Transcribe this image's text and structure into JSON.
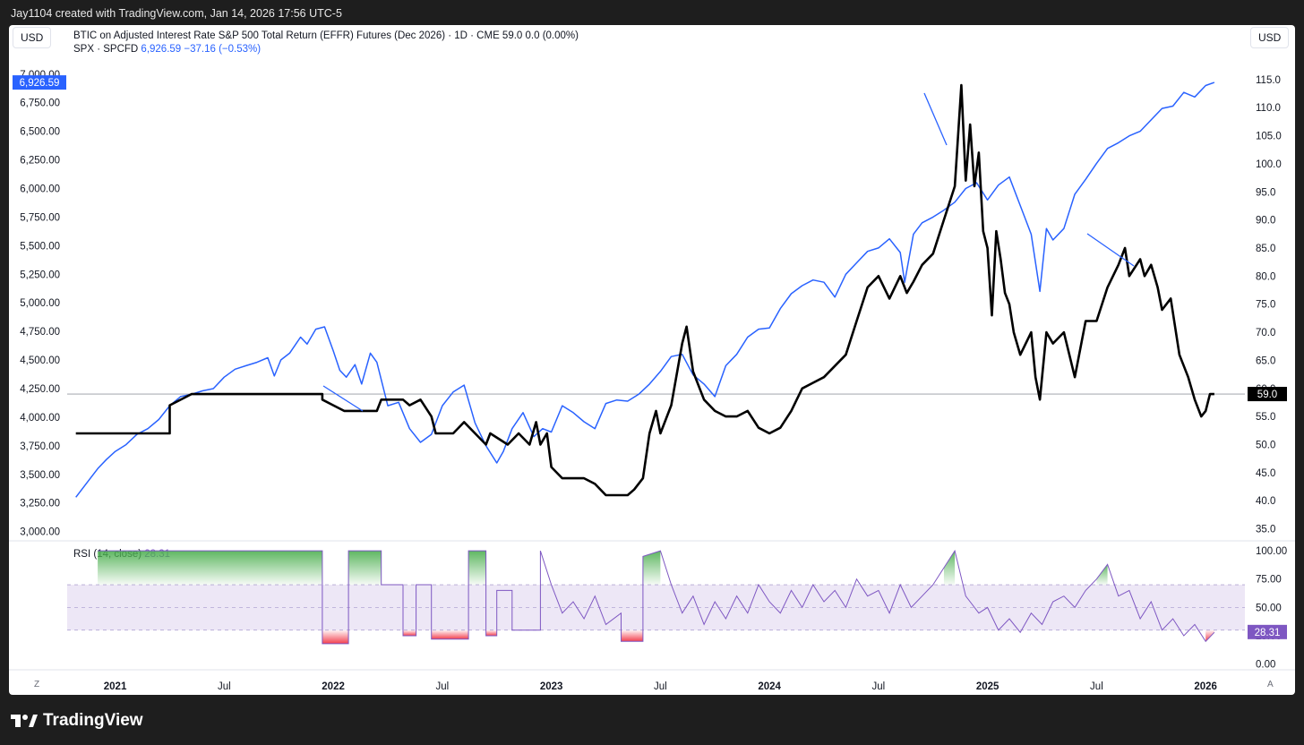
{
  "header": {
    "caption": "Jay1104 created with TradingView.com, Jan 14, 2026 17:56 UTC-5"
  },
  "toolbar": {
    "left_unit": "USD",
    "right_unit": "USD",
    "left_corner": "Z",
    "right_corner": "A"
  },
  "legend": {
    "main": "BTIC on Adjusted Interest Rate S&P 500 Total Return (EFFR) Futures (Dec 2026) · 1D · CME  59.0  0.0 (0.00%)",
    "spx_name": "SPX · SPCFD",
    "spx_value": "6,926.59",
    "spx_change": "−37.16 (−0.53%)",
    "rsi_name": "RSI (14, close)",
    "rsi_value": "28.31"
  },
  "brand": {
    "name": "TradingView"
  },
  "colors": {
    "spx": "#2962ff",
    "btic": "#000000",
    "rsi": "#7e57c2",
    "rsi_band": "#ede7f6",
    "overbought": "#4caf50",
    "oversold": "#f23645"
  },
  "chart_data": [
    {
      "type": "line",
      "x_labels": [
        "2021",
        "Jul",
        "2022",
        "Jul",
        "2023",
        "Jul",
        "2024",
        "Jul",
        "2025",
        "Jul",
        "2026"
      ],
      "left_axis": {
        "ticks": [
          "7,000.00",
          "6,750.00",
          "6,500.00",
          "6,250.00",
          "6,000.00",
          "5,750.00",
          "5,500.00",
          "5,250.00",
          "5,000.00",
          "4,750.00",
          "4,500.00",
          "4,250.00",
          "4,000.00",
          "3,750.00",
          "3,500.00",
          "3,250.00",
          "3,000.00"
        ],
        "ylim": [
          2950,
          7100
        ],
        "last_label": "6,926.59"
      },
      "right_axis": {
        "ticks": [
          "115.0",
          "110.0",
          "105.0",
          "100.0",
          "95.0",
          "90.0",
          "85.0",
          "80.0",
          "75.0",
          "70.0",
          "65.0",
          "60.0",
          "55.0",
          "50.0",
          "45.0",
          "40.0",
          "35.0"
        ],
        "ylim": [
          33.5,
          118
        ],
        "last_label": "59.0"
      },
      "series": [
        {
          "axis": "left",
          "x": [
            2020.82,
            2020.88,
            2020.92,
            2020.96,
            2021.0,
            2021.05,
            2021.1,
            2021.15,
            2021.2,
            2021.25,
            2021.3,
            2021.35,
            2021.4,
            2021.45,
            2021.5,
            2021.55,
            2021.6,
            2021.65,
            2021.7,
            2021.73,
            2021.76,
            2021.8,
            2021.85,
            2021.88,
            2021.92,
            2021.96,
            2022.0,
            2022.03,
            2022.06,
            2022.1,
            2022.13,
            2022.17,
            2022.2,
            2022.25,
            2022.3,
            2022.35,
            2022.4,
            2022.45,
            2022.5,
            2022.55,
            2022.6,
            2022.65,
            2022.7,
            2022.75,
            2022.78,
            2022.82,
            2022.87,
            2022.92,
            2022.96,
            2023.0,
            2023.05,
            2023.1,
            2023.15,
            2023.2,
            2023.25,
            2023.3,
            2023.35,
            2023.4,
            2023.45,
            2023.5,
            2023.55,
            2023.6,
            2023.65,
            2023.7,
            2023.75,
            2023.8,
            2023.85,
            2023.9,
            2023.95,
            2024.0,
            2024.05,
            2024.1,
            2024.15,
            2024.2,
            2024.25,
            2024.3,
            2024.35,
            2024.4,
            2024.45,
            2024.5,
            2024.55,
            2024.6,
            2024.62,
            2024.66,
            2024.7,
            2024.75,
            2024.8,
            2024.85,
            2024.9,
            2024.95,
            2025.0,
            2025.05,
            2025.1,
            2025.15,
            2025.2,
            2025.24,
            2025.27,
            2025.3,
            2025.35,
            2025.4,
            2025.45,
            2025.5,
            2025.55,
            2025.6,
            2025.65,
            2025.7,
            2025.75,
            2025.8,
            2025.85,
            2025.9,
            2025.95,
            2026.0,
            2026.04
          ],
          "values": [
            3300,
            3450,
            3550,
            3630,
            3700,
            3760,
            3850,
            3900,
            3980,
            4100,
            4180,
            4200,
            4230,
            4250,
            4350,
            4420,
            4450,
            4480,
            4520,
            4360,
            4500,
            4560,
            4700,
            4640,
            4770,
            4790,
            4580,
            4410,
            4350,
            4460,
            4290,
            4560,
            4480,
            4100,
            4130,
            3900,
            3780,
            3850,
            4100,
            4220,
            4280,
            3950,
            3750,
            3600,
            3700,
            3900,
            4040,
            3830,
            3900,
            3870,
            4100,
            4040,
            3960,
            3900,
            4120,
            4150,
            4140,
            4200,
            4290,
            4400,
            4530,
            4550,
            4370,
            4290,
            4180,
            4450,
            4550,
            4700,
            4770,
            4780,
            4950,
            5080,
            5150,
            5200,
            5180,
            5050,
            5250,
            5350,
            5450,
            5480,
            5560,
            5440,
            5180,
            5600,
            5700,
            5750,
            5810,
            5880,
            6000,
            6050,
            5900,
            6030,
            6100,
            5850,
            5600,
            5100,
            5650,
            5550,
            5650,
            5950,
            6080,
            6220,
            6350,
            6400,
            6460,
            6500,
            6600,
            6700,
            6720,
            6840,
            6800,
            6900,
            6927
          ]
        },
        {
          "axis": "right",
          "x": [
            2020.82,
            2021.25,
            2021.25,
            2021.35,
            2021.5,
            2021.7,
            2021.95,
            2021.95,
            2022.0,
            2022.05,
            2022.1,
            2022.2,
            2022.22,
            2022.32,
            2022.35,
            2022.4,
            2022.45,
            2022.47,
            2022.55,
            2022.6,
            2022.7,
            2022.72,
            2022.8,
            2022.85,
            2022.9,
            2022.93,
            2022.95,
            2022.98,
            2023.0,
            2023.05,
            2023.1,
            2023.15,
            2023.2,
            2023.25,
            2023.3,
            2023.35,
            2023.38,
            2023.42,
            2023.45,
            2023.48,
            2023.5,
            2023.55,
            2023.6,
            2023.62,
            2023.65,
            2023.7,
            2023.75,
            2023.8,
            2023.85,
            2023.9,
            2023.95,
            2024.0,
            2024.05,
            2024.1,
            2024.15,
            2024.2,
            2024.25,
            2024.3,
            2024.35,
            2024.4,
            2024.45,
            2024.5,
            2024.55,
            2024.6,
            2024.63,
            2024.66,
            2024.7,
            2024.75,
            2024.8,
            2024.85,
            2024.88,
            2024.9,
            2024.92,
            2024.94,
            2024.96,
            2024.98,
            2025.0,
            2025.02,
            2025.04,
            2025.06,
            2025.08,
            2025.1,
            2025.12,
            2025.15,
            2025.2,
            2025.22,
            2025.24,
            2025.27,
            2025.3,
            2025.35,
            2025.4,
            2025.45,
            2025.5,
            2025.55,
            2025.6,
            2025.63,
            2025.65,
            2025.7,
            2025.72,
            2025.75,
            2025.78,
            2025.8,
            2025.84,
            2025.88,
            2025.92,
            2025.95,
            2025.98,
            2026.0,
            2026.02,
            2026.04
          ],
          "values": [
            52,
            52,
            57,
            59,
            59,
            59,
            59,
            58,
            57,
            56,
            56,
            56,
            58,
            58,
            57,
            58,
            55,
            52,
            52,
            54,
            50,
            52,
            50,
            52,
            50,
            54,
            50,
            52,
            46,
            44,
            44,
            44,
            43,
            41,
            41,
            41,
            42,
            44,
            52,
            56,
            52,
            57,
            68,
            71,
            63,
            58,
            56,
            55,
            55,
            56,
            53,
            52,
            53,
            56,
            60,
            61,
            62,
            64,
            66,
            72,
            78,
            80,
            76,
            80,
            77,
            79,
            82,
            84,
            90,
            96,
            114,
            97,
            107,
            96,
            102,
            88,
            85,
            73,
            88,
            83,
            77,
            75,
            70,
            66,
            70,
            62,
            58,
            70,
            68,
            70,
            62,
            72,
            72,
            78,
            82,
            85,
            80,
            83,
            80,
            82,
            78,
            74,
            76,
            66,
            62,
            58,
            55,
            56,
            59,
            59
          ]
        },
        {
          "axis": "rsi",
          "ylim": [
            -5,
            104
          ],
          "ticks": [
            "100.00",
            "75.00",
            "50.00",
            "25.00",
            "0.00"
          ],
          "bands": [
            30,
            50,
            70
          ],
          "last_label": "28.31",
          "x": [
            2020.92,
            2021.95,
            2021.95,
            2022.07,
            2022.07,
            2022.22,
            2022.22,
            2022.32,
            2022.32,
            2022.38,
            2022.38,
            2022.45,
            2022.45,
            2022.62,
            2022.62,
            2022.7,
            2022.7,
            2022.75,
            2022.75,
            2022.82,
            2022.82,
            2022.95,
            2022.95,
            2023.0,
            2023.05,
            2023.1,
            2023.15,
            2023.2,
            2023.25,
            2023.32,
            2023.32,
            2023.42,
            2023.42,
            2023.5,
            2023.55,
            2023.6,
            2023.65,
            2023.7,
            2023.75,
            2023.8,
            2023.85,
            2023.9,
            2023.95,
            2024.0,
            2024.05,
            2024.1,
            2024.15,
            2024.2,
            2024.25,
            2024.3,
            2024.35,
            2024.4,
            2024.45,
            2024.5,
            2024.55,
            2024.6,
            2024.65,
            2024.7,
            2024.75,
            2024.8,
            2024.85,
            2024.9,
            2024.92,
            2024.96,
            2025.0,
            2025.05,
            2025.1,
            2025.15,
            2025.2,
            2025.25,
            2025.3,
            2025.35,
            2025.4,
            2025.45,
            2025.5,
            2025.55,
            2025.6,
            2025.65,
            2025.7,
            2025.75,
            2025.8,
            2025.85,
            2025.9,
            2025.95,
            2026.0,
            2026.04
          ],
          "values": [
            100,
            100,
            18,
            18,
            100,
            100,
            70,
            70,
            25,
            25,
            70,
            70,
            22,
            22,
            100,
            100,
            25,
            25,
            65,
            65,
            30,
            30,
            100,
            70,
            45,
            55,
            40,
            60,
            35,
            45,
            20,
            20,
            95,
            100,
            70,
            45,
            60,
            35,
            55,
            40,
            60,
            45,
            70,
            55,
            45,
            65,
            50,
            70,
            55,
            65,
            50,
            75,
            60,
            65,
            45,
            70,
            50,
            60,
            70,
            85,
            100,
            60,
            55,
            45,
            50,
            30,
            40,
            28,
            45,
            35,
            55,
            60,
            50,
            65,
            75,
            88,
            60,
            65,
            40,
            55,
            30,
            40,
            25,
            35,
            20,
            28
          ]
        }
      ]
    }
  ]
}
